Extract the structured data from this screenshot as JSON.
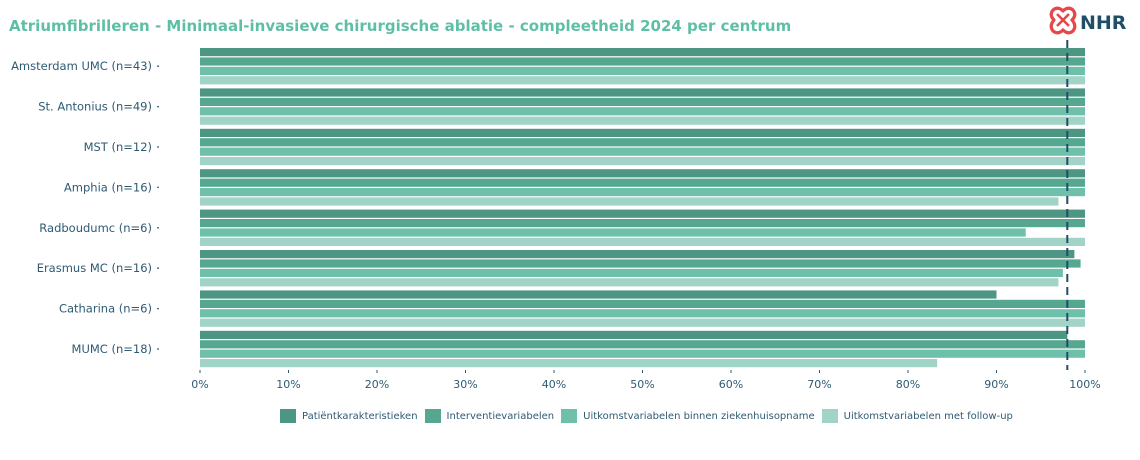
{
  "header": {
    "title": "Atriumfibrilleren - Minimaal-invasieve chirurgische ablatie - compleetheid 2024 per centrum",
    "logo_text": "NHR",
    "logo_icon": "heart-cross-logo",
    "logo_color": "#e4484a"
  },
  "chart_data": {
    "type": "bar",
    "orientation": "horizontal",
    "title": "Atriumfibrilleren - Minimaal-invasieve chirurgische ablatie - compleetheid 2024 per centrum",
    "categories": [
      "Amsterdam UMC (n=43)",
      "St. Antonius (n=49)",
      "MST (n=12)",
      "Amphia (n=16)",
      "Radboudumc (n=6)",
      "Erasmus MC (n=16)",
      "Catharina (n=6)",
      "MUMC (n=18)"
    ],
    "series": [
      {
        "name": "Patiëntkarakteristieken",
        "color": "#4e9684",
        "values": [
          100,
          100,
          100,
          100,
          100,
          98.8,
          90,
          98
        ]
      },
      {
        "name": "Interventievariabelen",
        "color": "#55a88f",
        "values": [
          100,
          100,
          100,
          100,
          100,
          99.5,
          100,
          100
        ]
      },
      {
        "name": "Uitkomstvariabelen binnen ziekenhuisopname",
        "color": "#6fc0aa",
        "values": [
          100,
          100,
          100,
          100,
          93.3,
          97.5,
          100,
          100
        ]
      },
      {
        "name": "Uitkomstvariabelen met follow-up",
        "color": "#a1d4c6",
        "values": [
          100,
          100,
          100,
          97,
          100,
          97,
          100,
          83.3
        ]
      }
    ],
    "xlim": [
      0,
      100
    ],
    "x_ticks": [
      "0%",
      "10%",
      "20%",
      "30%",
      "40%",
      "50%",
      "60%",
      "70%",
      "80%",
      "90%",
      "100%"
    ],
    "reference_line": {
      "value": 98,
      "style": "dashed",
      "color": "#1f4e66"
    },
    "grid": false,
    "legend_position": "bottom"
  }
}
